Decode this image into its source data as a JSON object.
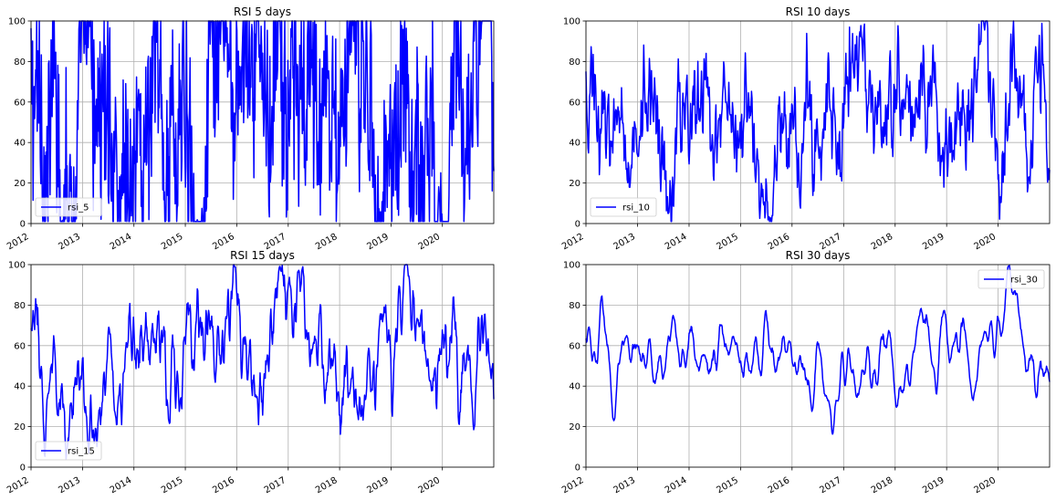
{
  "chart_data": [
    {
      "type": "line",
      "title": "RSI 5 days",
      "series": [
        {
          "name": "rsi_5",
          "color": "#0000ff"
        }
      ],
      "x_range": [
        "2012-01-01",
        "2020-12-31"
      ],
      "x_ticks": [
        "2012",
        "2013",
        "2014",
        "2015",
        "2016",
        "2017",
        "2018",
        "2019",
        "2020"
      ],
      "ylim": [
        0,
        100
      ],
      "y_ticks": [
        "0",
        "20",
        "40",
        "60",
        "80",
        "100"
      ],
      "grid": true,
      "legend": "lower left",
      "profile": {
        "center": 50,
        "spread": 30,
        "smooth": 1,
        "noise": 42
      }
    },
    {
      "type": "line",
      "title": "RSI 10 days",
      "series": [
        {
          "name": "rsi_10",
          "color": "#0000ff"
        }
      ],
      "x_range": [
        "2012-01-01",
        "2020-12-31"
      ],
      "x_ticks": [
        "2012",
        "2013",
        "2014",
        "2015",
        "2016",
        "2017",
        "2018",
        "2019",
        "2020"
      ],
      "ylim": [
        0,
        100
      ],
      "y_ticks": [
        "0",
        "20",
        "40",
        "60",
        "80",
        "100"
      ],
      "grid": true,
      "legend": "lower left",
      "profile": {
        "center": 52,
        "spread": 18,
        "smooth": 2,
        "noise": 20
      }
    },
    {
      "type": "line",
      "title": "RSI 15 days",
      "series": [
        {
          "name": "rsi_15",
          "color": "#0000ff"
        }
      ],
      "x_range": [
        "2012-01-01",
        "2020-12-31"
      ],
      "x_ticks": [
        "2012",
        "2013",
        "2014",
        "2015",
        "2016",
        "2017",
        "2018",
        "2019",
        "2020"
      ],
      "ylim": [
        0,
        100
      ],
      "y_ticks": [
        "0",
        "20",
        "40",
        "60",
        "80",
        "100"
      ],
      "grid": true,
      "legend": "lower left",
      "profile": {
        "center": 53,
        "spread": 16,
        "smooth": 3,
        "noise": 12
      }
    },
    {
      "type": "line",
      "title": "RSI 30 days",
      "series": [
        {
          "name": "rsi_30",
          "color": "#0000ff"
        }
      ],
      "x_range": [
        "2012-01-01",
        "2020-12-31"
      ],
      "x_ticks": [
        "2012",
        "2013",
        "2014",
        "2015",
        "2016",
        "2017",
        "2018",
        "2019",
        "2020"
      ],
      "ylim": [
        0,
        100
      ],
      "y_ticks": [
        "0",
        "20",
        "40",
        "60",
        "80",
        "100"
      ],
      "grid": true,
      "legend": "upper right",
      "profile": {
        "center": 55,
        "spread": 12,
        "smooth": 6,
        "noise": 5
      }
    }
  ]
}
